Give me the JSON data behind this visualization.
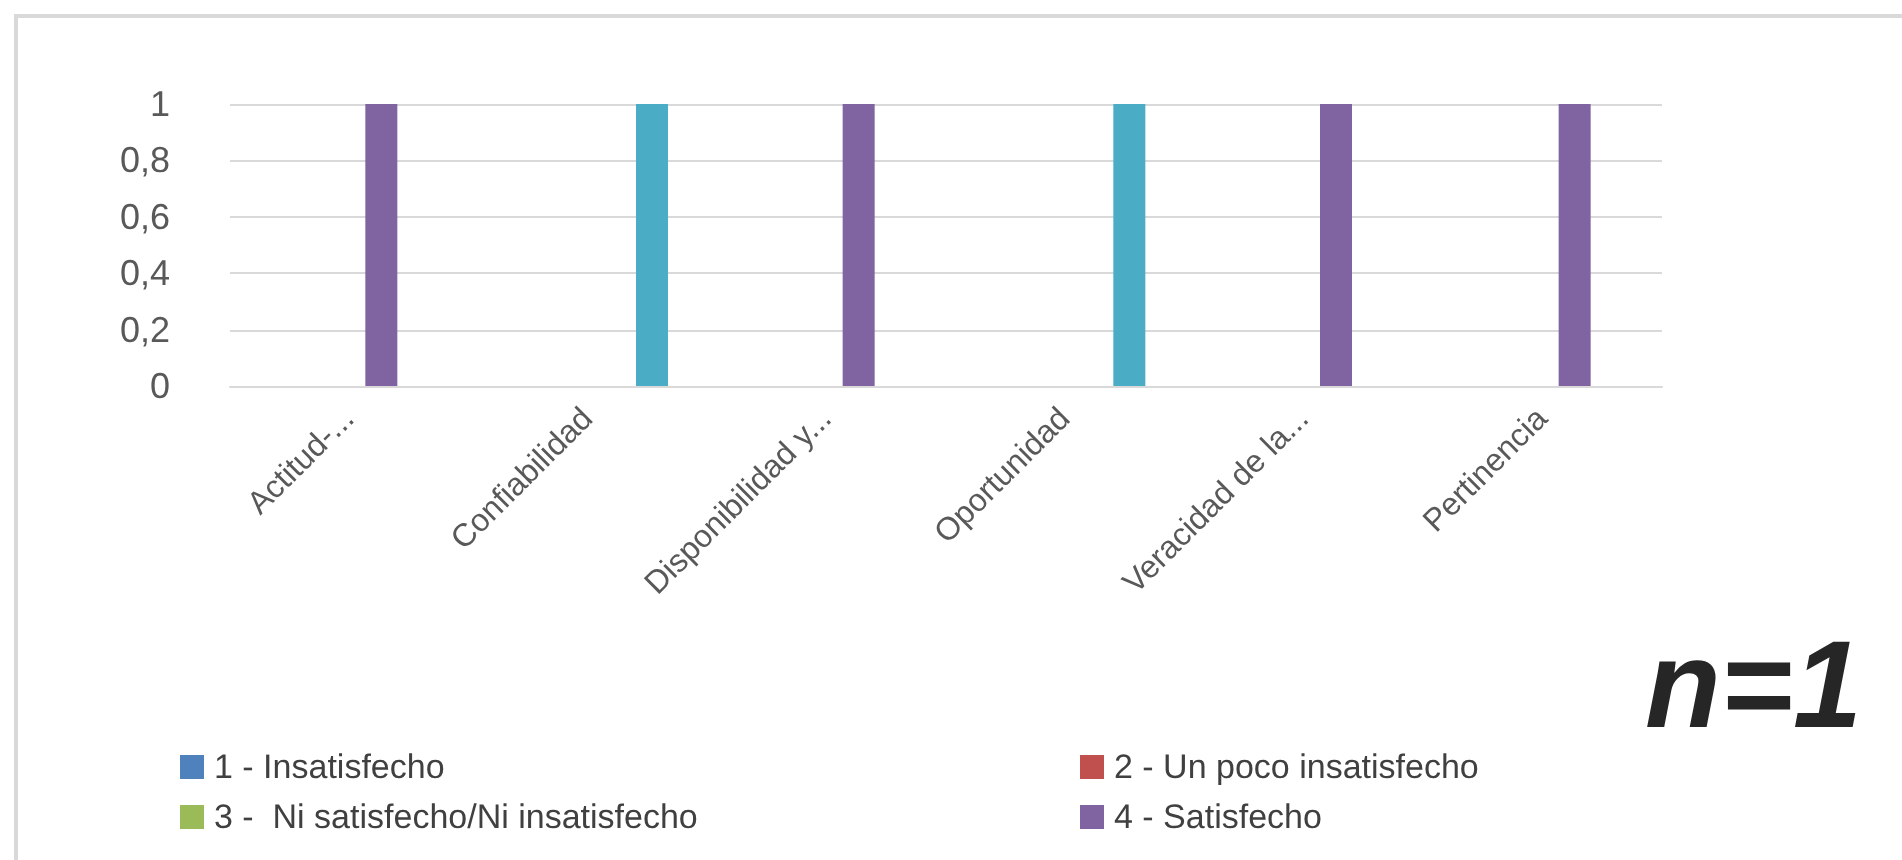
{
  "chart_data": {
    "type": "bar",
    "categories": [
      "Actitud-...",
      "Confiabilidad",
      "Disponibilidad y...",
      "Oportunidad",
      "Veracidad de la...",
      "Pertinencia"
    ],
    "series": [
      {
        "name": "1 - Insatisfecho",
        "color": "#4f81bd",
        "values": [
          0,
          0,
          0,
          0,
          0,
          0
        ]
      },
      {
        "name": "2 - Un poco insatisfecho",
        "color": "#c0504d",
        "values": [
          0,
          0,
          0,
          0,
          0,
          0
        ]
      },
      {
        "name": "3 -  Ni satisfecho/Ni insatisfecho",
        "color": "#9bbb59",
        "values": [
          0,
          0,
          0,
          0,
          0,
          0
        ]
      },
      {
        "name": "4 - Satisfecho",
        "color": "#8064a2",
        "values": [
          1,
          0,
          1,
          0,
          1,
          1
        ]
      },
      {
        "color": "#4bacc6",
        "values": [
          0,
          1,
          0,
          1,
          0,
          0
        ]
      }
    ],
    "ylim": [
      0,
      1
    ],
    "yticks": [
      0,
      {
        "value": 0.2,
        "label": "0,2"
      },
      {
        "value": 0.4,
        "label": "0,4"
      },
      {
        "value": 0.6,
        "label": "0,6"
      },
      {
        "value": 0.8,
        "label": "0,8"
      },
      1
    ],
    "grid": "y",
    "legend": "bottom",
    "annotations": [
      "n=1"
    ]
  }
}
